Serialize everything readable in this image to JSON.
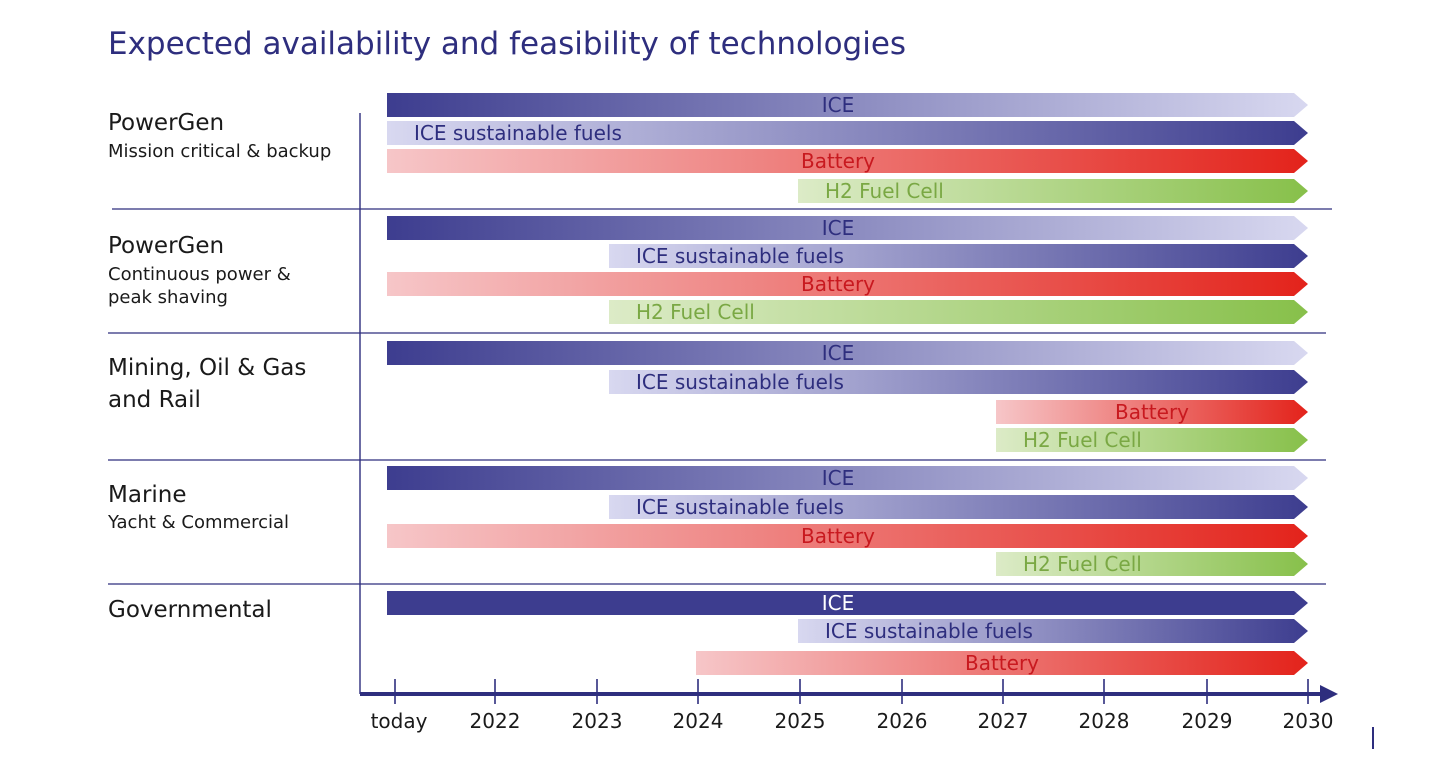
{
  "title": "Expected availability and feasibility of technologies",
  "colors": {
    "ice_dark": "#3d3d8f",
    "ice_light": "#d8d8f0",
    "battery_light": "#f6c6c8",
    "battery_dark": "#e3231b",
    "h2_light": "#dcebc7",
    "h2_dark": "#87c04a",
    "axis": "#2e2e7e",
    "grid": "#2e2e7e",
    "label_ice": "#2e2e7e",
    "label_battery": "#c8191f",
    "label_h2": "#7aa844"
  },
  "chart_data": {
    "type": "gantt",
    "x_ticks": [
      "today",
      "2022",
      "2023",
      "2024",
      "2025",
      "2026",
      "2027",
      "2028",
      "2029",
      "2030"
    ],
    "x_range": [
      "today",
      "2030"
    ],
    "sections": [
      {
        "title": "PowerGen",
        "subtitle": [
          "Mission critical & backup"
        ],
        "bars": [
          {
            "label": "ICE",
            "tech": "ice",
            "fade": "out",
            "start": "today",
            "end": "2030"
          },
          {
            "label": "ICE sustainable fuels",
            "tech": "ice",
            "fade": "in",
            "start": "today",
            "end": "2030"
          },
          {
            "label": "Battery",
            "tech": "battery",
            "fade": "in",
            "start": "today",
            "end": "2030"
          },
          {
            "label": "H2 Fuel Cell",
            "tech": "h2",
            "fade": "in",
            "start": "2025",
            "end": "2030"
          }
        ]
      },
      {
        "title": "PowerGen",
        "subtitle": [
          "Continuous power &",
          "peak shaving"
        ],
        "bars": [
          {
            "label": "ICE",
            "tech": "ice",
            "fade": "out",
            "start": "today",
            "end": "2030"
          },
          {
            "label": "ICE sustainable fuels",
            "tech": "ice",
            "fade": "in",
            "start": "2023",
            "end": "2030"
          },
          {
            "label": "Battery",
            "tech": "battery",
            "fade": "in",
            "start": "today",
            "end": "2030"
          },
          {
            "label": "H2 Fuel Cell",
            "tech": "h2",
            "fade": "in",
            "start": "2023",
            "end": "2030"
          }
        ]
      },
      {
        "title": "Mining, Oil & Gas",
        "title2": "and Rail",
        "subtitle": [],
        "bars": [
          {
            "label": "ICE",
            "tech": "ice",
            "fade": "out",
            "start": "today",
            "end": "2030"
          },
          {
            "label": "ICE sustainable fuels",
            "tech": "ice",
            "fade": "in",
            "start": "2023",
            "end": "2030"
          },
          {
            "label": "Battery",
            "tech": "battery",
            "fade": "in",
            "start": "2027",
            "end": "2030"
          },
          {
            "label": "H2 Fuel Cell",
            "tech": "h2",
            "fade": "in",
            "start": "2027",
            "end": "2030"
          }
        ]
      },
      {
        "title": "Marine",
        "subtitle": [
          "Yacht & Commercial"
        ],
        "bars": [
          {
            "label": "ICE",
            "tech": "ice",
            "fade": "out",
            "start": "today",
            "end": "2030"
          },
          {
            "label": "ICE sustainable fuels",
            "tech": "ice",
            "fade": "in",
            "start": "2023",
            "end": "2030"
          },
          {
            "label": "Battery",
            "tech": "battery",
            "fade": "in",
            "start": "today",
            "end": "2030"
          },
          {
            "label": "H2 Fuel Cell",
            "tech": "h2",
            "fade": "in",
            "start": "2027",
            "end": "2030"
          }
        ]
      },
      {
        "title": "Governmental",
        "subtitle": [],
        "bars": [
          {
            "label": "ICE",
            "tech": "ice",
            "fade": "none",
            "start": "today",
            "end": "2030"
          },
          {
            "label": "ICE sustainable fuels",
            "tech": "ice",
            "fade": "in",
            "start": "2025",
            "end": "2030"
          },
          {
            "label": "Battery",
            "tech": "battery",
            "fade": "in",
            "start": "2024",
            "end": "2030"
          }
        ]
      }
    ]
  }
}
